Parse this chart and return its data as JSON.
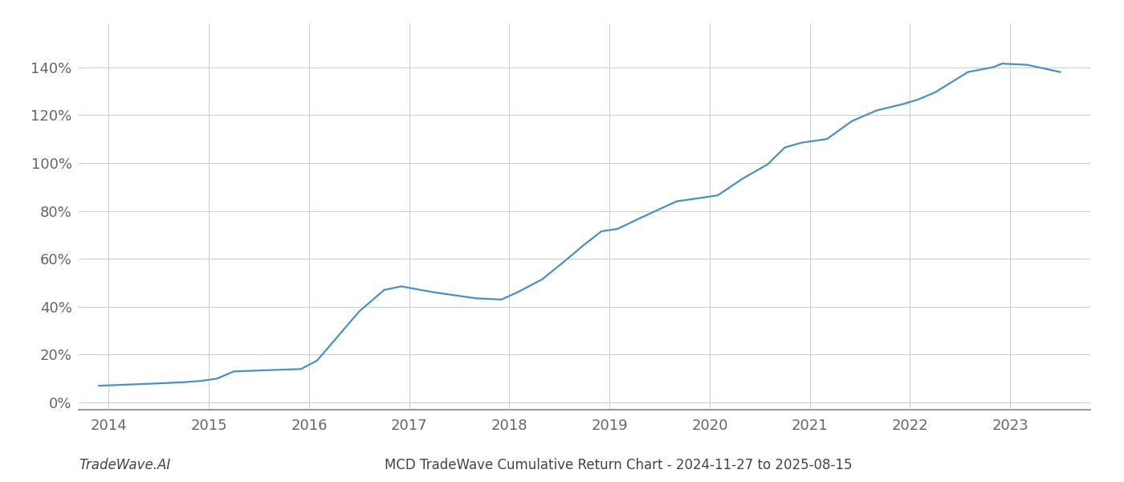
{
  "title": "MCD TradeWave Cumulative Return Chart - 2024-11-27 to 2025-08-15",
  "watermark": "TradeWave.AI",
  "line_color": "#4a90c4",
  "line_width": 1.6,
  "background_color": "#ffffff",
  "grid_color": "#cccccc",
  "x_values": [
    2013.9,
    2014.2,
    2014.5,
    2014.75,
    2014.92,
    2015.08,
    2015.25,
    2015.92,
    2016.08,
    2016.5,
    2016.75,
    2016.92,
    2017.25,
    2017.67,
    2017.92,
    2018.08,
    2018.33,
    2018.58,
    2018.75,
    2018.92,
    2019.08,
    2019.33,
    2019.67,
    2019.92,
    2020.08,
    2020.33,
    2020.58,
    2020.75,
    2020.92,
    2021.17,
    2021.42,
    2021.67,
    2021.92,
    2022.08,
    2022.25,
    2022.58,
    2022.83,
    2022.92,
    2023.17,
    2023.5
  ],
  "y_values": [
    0.07,
    0.075,
    0.08,
    0.085,
    0.09,
    0.1,
    0.13,
    0.14,
    0.175,
    0.38,
    0.47,
    0.485,
    0.46,
    0.435,
    0.43,
    0.46,
    0.515,
    0.6,
    0.66,
    0.715,
    0.725,
    0.775,
    0.84,
    0.855,
    0.865,
    0.935,
    0.995,
    1.065,
    1.085,
    1.1,
    1.175,
    1.22,
    1.245,
    1.265,
    1.295,
    1.38,
    1.4,
    1.415,
    1.41,
    1.38
  ],
  "xticks": [
    2014,
    2015,
    2016,
    2017,
    2018,
    2019,
    2020,
    2021,
    2022,
    2023
  ],
  "yticks": [
    0.0,
    0.2,
    0.4,
    0.6,
    0.8,
    1.0,
    1.2,
    1.4
  ],
  "ylim": [
    -0.03,
    1.58
  ],
  "xlim": [
    2013.7,
    2023.8
  ],
  "title_fontsize": 12,
  "tick_fontsize": 13,
  "watermark_fontsize": 12
}
